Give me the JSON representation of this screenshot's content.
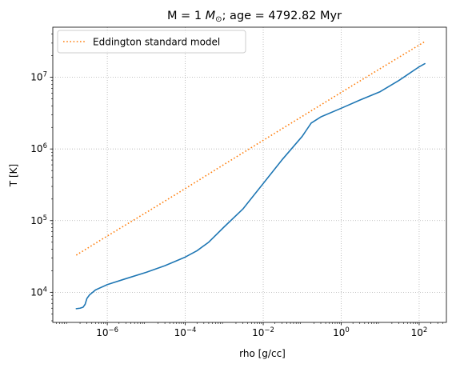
{
  "chart_data": {
    "type": "line",
    "title": "M = 1 M⊙; age = 4792.82 Myr",
    "title_parts": {
      "prefix": "M = 1 ",
      "unit_symbol": "M",
      "unit_subscript": "⊙",
      "suffix": "; age = 4792.82 Myr"
    },
    "xlabel": "rho [g/cc]",
    "ylabel": "T [K]",
    "xscale": "log",
    "yscale": "log",
    "xlim": [
      4e-08,
      500
    ],
    "ylim": [
      3800,
      50000000.0
    ],
    "grid": true,
    "legend_placement": "top-left",
    "x_ticks": [
      {
        "value": 1e-06,
        "base": "10",
        "exp": "−6"
      },
      {
        "value": 0.0001,
        "base": "10",
        "exp": "−4"
      },
      {
        "value": 0.01,
        "base": "10",
        "exp": "−2"
      },
      {
        "value": 1,
        "base": "10",
        "exp": "0"
      },
      {
        "value": 100,
        "base": "10",
        "exp": "2"
      }
    ],
    "y_ticks": [
      {
        "value": 10000.0,
        "base": "10",
        "exp": "4"
      },
      {
        "value": 100000.0,
        "base": "10",
        "exp": "5"
      },
      {
        "value": 1000000.0,
        "base": "10",
        "exp": "6"
      },
      {
        "value": 10000000.0,
        "base": "10",
        "exp": "7"
      }
    ],
    "series": [
      {
        "color": "#1f77b4",
        "style": "solid",
        "points": [
          [
            1.6e-07,
            5900
          ],
          [
            2e-07,
            6000
          ],
          [
            2.4e-07,
            6200
          ],
          [
            2.7e-07,
            6800
          ],
          [
            3e-07,
            8200
          ],
          [
            3.5e-07,
            9200
          ],
          [
            5e-07,
            10800
          ],
          [
            1e-06,
            12800
          ],
          [
            3e-06,
            15500
          ],
          [
            1e-05,
            19000
          ],
          [
            3e-05,
            23500
          ],
          [
            0.0001,
            31000
          ],
          [
            0.0002,
            38000
          ],
          [
            0.0004,
            50000
          ],
          [
            0.001,
            82000
          ],
          [
            0.003,
            145000
          ],
          [
            0.01,
            330000
          ],
          [
            0.03,
            700000
          ],
          [
            0.1,
            1500000
          ],
          [
            0.17,
            2300000
          ],
          [
            0.3,
            2800000
          ],
          [
            1.0,
            3700000
          ],
          [
            3.0,
            4800000
          ],
          [
            10,
            6300000
          ],
          [
            30,
            9000000
          ],
          [
            100,
            14000000
          ],
          [
            140,
            15500000
          ]
        ]
      },
      {
        "name": "Eddington standard model",
        "color": "#ff7f0e",
        "style": "dotted",
        "points": [
          [
            1.6e-07,
            33000
          ],
          [
            1e-06,
            61000
          ],
          [
            1e-05,
            130000
          ],
          [
            0.0001,
            280000
          ],
          [
            0.001,
            610000
          ],
          [
            0.01,
            1320000
          ],
          [
            0.1,
            2850000
          ],
          [
            1.0,
            6150000
          ],
          [
            10,
            13200000
          ],
          [
            140,
            31500000
          ]
        ]
      }
    ]
  }
}
